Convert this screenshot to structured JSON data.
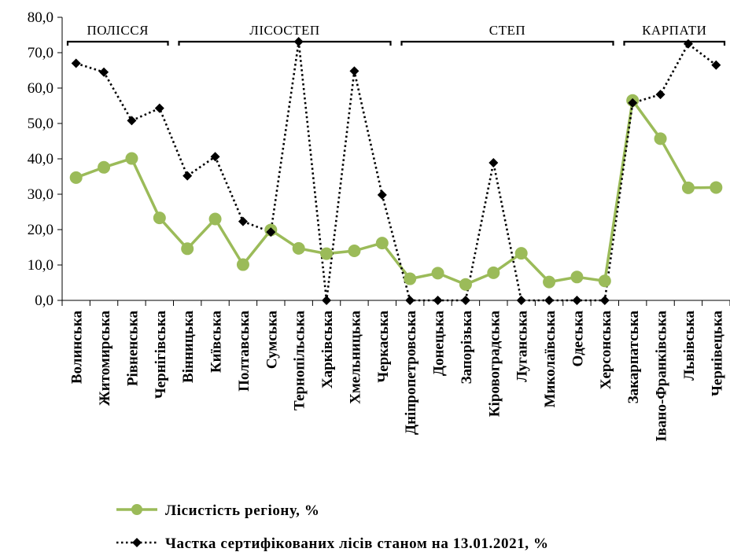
{
  "chart_data": {
    "type": "line",
    "categories": [
      "Волинська",
      "Житомирська",
      "Рівненська",
      "Чернігівська",
      "Вінницька",
      "Київська",
      "Полтавська",
      "Сумська",
      "Тернопільська",
      "Харківська",
      "Хмельницька",
      "Черкаська",
      "Дніпропетровська",
      "Донецька",
      "Запорізька",
      "Кіровоградська",
      "Луганська",
      "Миколаївська",
      "Одеська",
      "Херсонська",
      "Закарпатська",
      "Івано-Франківська",
      "Львівська",
      "Чернівецька"
    ],
    "series": [
      {
        "name": "Лісистість регіону, %",
        "color": "#9bbb59",
        "marker": "circle",
        "values": [
          34.7,
          37.6,
          40.1,
          23.3,
          14.6,
          23.0,
          10.1,
          19.9,
          14.7,
          13.2,
          14.0,
          16.2,
          6.1,
          7.7,
          4.5,
          7.8,
          13.3,
          5.2,
          6.6,
          5.5,
          56.5,
          45.7,
          31.8,
          31.9
        ]
      },
      {
        "name": "Частка сертифікованих лісів станом на 13.01.2021, %",
        "color": "#000000",
        "marker": "diamond",
        "values": [
          67.0,
          64.5,
          50.8,
          54.3,
          35.2,
          40.6,
          22.3,
          19.3,
          73.1,
          0.0,
          64.8,
          29.8,
          0.0,
          0.0,
          0.0,
          38.9,
          0.0,
          0.0,
          0.0,
          0.0,
          55.8,
          58.2,
          72.5,
          66.5
        ]
      }
    ],
    "ylim": [
      0,
      80
    ],
    "yticks": [
      "0,0",
      "10,0",
      "20,0",
      "30,0",
      "40,0",
      "50,0",
      "60,0",
      "70,0",
      "80,0"
    ],
    "groups": [
      {
        "label": "ПОЛІССЯ",
        "from": 0,
        "to": 3
      },
      {
        "label": "ЛІСОСТЕП",
        "from": 4,
        "to": 11
      },
      {
        "label": "СТЕП",
        "from": 12,
        "to": 19
      },
      {
        "label": "КАРПАТИ",
        "from": 20,
        "to": 23
      }
    ],
    "legend_position": "bottom"
  }
}
